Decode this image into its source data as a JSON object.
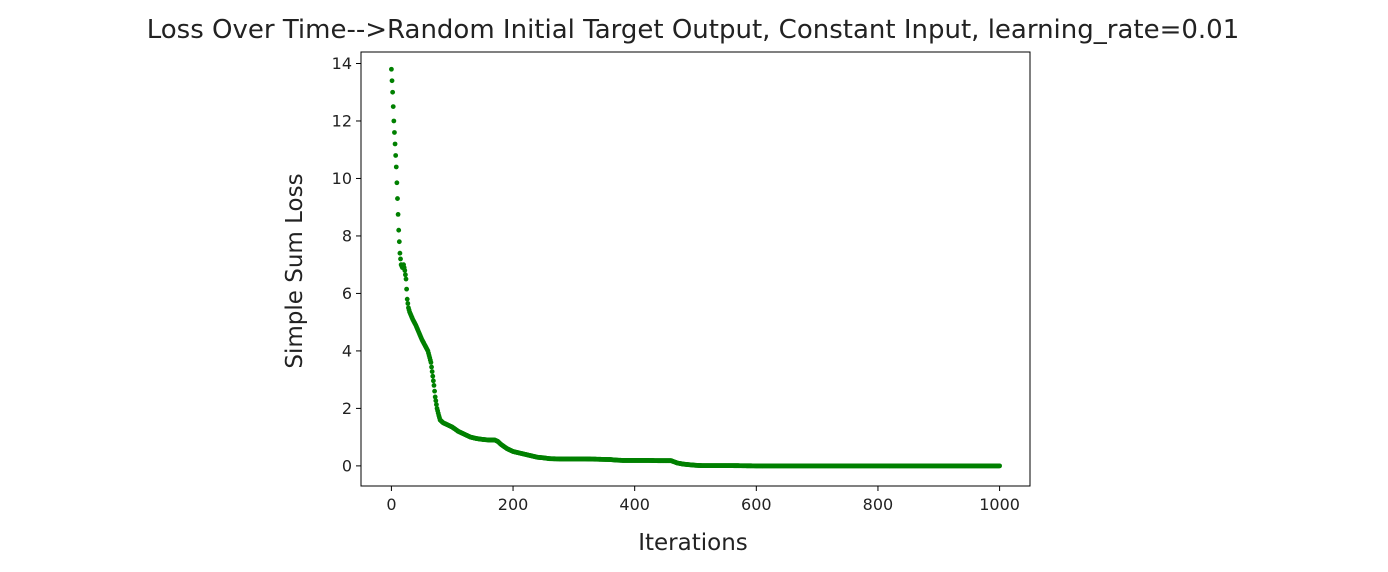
{
  "chart_data": {
    "type": "scatter",
    "title": "Loss Over Time-->Random Initial Target Output, Constant Input, learning_rate=0.01",
    "xlabel": "Iterations",
    "ylabel": "Simple Sum Loss",
    "xlim": [
      -50,
      1050
    ],
    "ylim": [
      -0.7,
      14.4
    ],
    "xticks": [
      0,
      200,
      400,
      600,
      800,
      1000
    ],
    "yticks": [
      0,
      2,
      4,
      6,
      8,
      10,
      12,
      14
    ],
    "xtick_labels": [
      "0",
      "200",
      "400",
      "600",
      "800",
      "1000"
    ],
    "ytick_labels": [
      "0",
      "2",
      "4",
      "6",
      "8",
      "10",
      "12",
      "14"
    ],
    "grid": false,
    "legend": "none",
    "marker_color": "#008000",
    "series": [
      {
        "x": [
          0,
          2,
          4,
          6,
          8,
          10,
          12,
          14,
          16,
          18,
          20,
          22,
          24,
          26,
          28,
          30,
          35,
          40,
          45,
          50,
          55,
          60,
          65,
          70,
          72,
          75,
          78,
          80,
          85,
          90,
          100,
          110,
          120,
          130,
          140,
          150,
          160,
          170,
          175,
          180,
          190,
          200,
          210,
          220,
          230,
          240,
          250,
          260,
          280,
          300,
          320,
          340,
          360,
          370,
          380,
          400,
          420,
          440,
          460,
          470,
          480,
          490,
          500,
          510,
          550,
          600,
          650,
          700,
          750,
          800,
          850,
          900,
          950,
          1000
        ],
        "y": [
          13.8,
          13.0,
          12.0,
          11.2,
          10.4,
          9.3,
          8.2,
          7.4,
          7.0,
          6.9,
          7.0,
          6.8,
          6.5,
          5.8,
          5.5,
          5.35,
          5.1,
          4.9,
          4.65,
          4.4,
          4.2,
          4.0,
          3.6,
          2.8,
          2.4,
          2.0,
          1.75,
          1.6,
          1.5,
          1.45,
          1.35,
          1.2,
          1.1,
          1.0,
          0.95,
          0.92,
          0.9,
          0.9,
          0.85,
          0.75,
          0.6,
          0.5,
          0.45,
          0.4,
          0.35,
          0.3,
          0.28,
          0.25,
          0.24,
          0.24,
          0.24,
          0.23,
          0.22,
          0.2,
          0.19,
          0.19,
          0.19,
          0.18,
          0.18,
          0.1,
          0.06,
          0.04,
          0.02,
          0.01,
          0.01,
          0.0,
          0.0,
          0.0,
          0.0,
          0.0,
          0.0,
          0.0,
          0.0,
          0.0
        ]
      }
    ]
  }
}
